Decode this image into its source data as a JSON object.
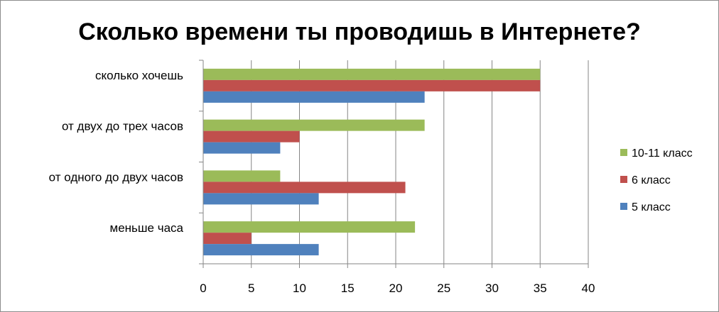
{
  "chart_data": {
    "type": "bar",
    "orientation": "horizontal",
    "title": "Сколько времени ты проводишь в Интернете?",
    "xlabel": "",
    "ylabel": "",
    "categories": [
      "сколько хочешь",
      "от двух до трех часов",
      "от одного до двух часов",
      "меньше часа"
    ],
    "series": [
      {
        "name": "10-11 класс",
        "color": "#9bbb59",
        "values": [
          35,
          23,
          8,
          22
        ]
      },
      {
        "name": "6 класс",
        "color": "#c0504d",
        "values": [
          35,
          10,
          21,
          5
        ]
      },
      {
        "name": "5 класс",
        "color": "#4f81bd",
        "values": [
          23,
          8,
          12,
          12
        ]
      }
    ],
    "xlim": [
      0,
      40
    ],
    "xticks": [
      0,
      5,
      10,
      15,
      20,
      25,
      30,
      35,
      40
    ],
    "grid": "vertical",
    "legend_position": "right"
  }
}
